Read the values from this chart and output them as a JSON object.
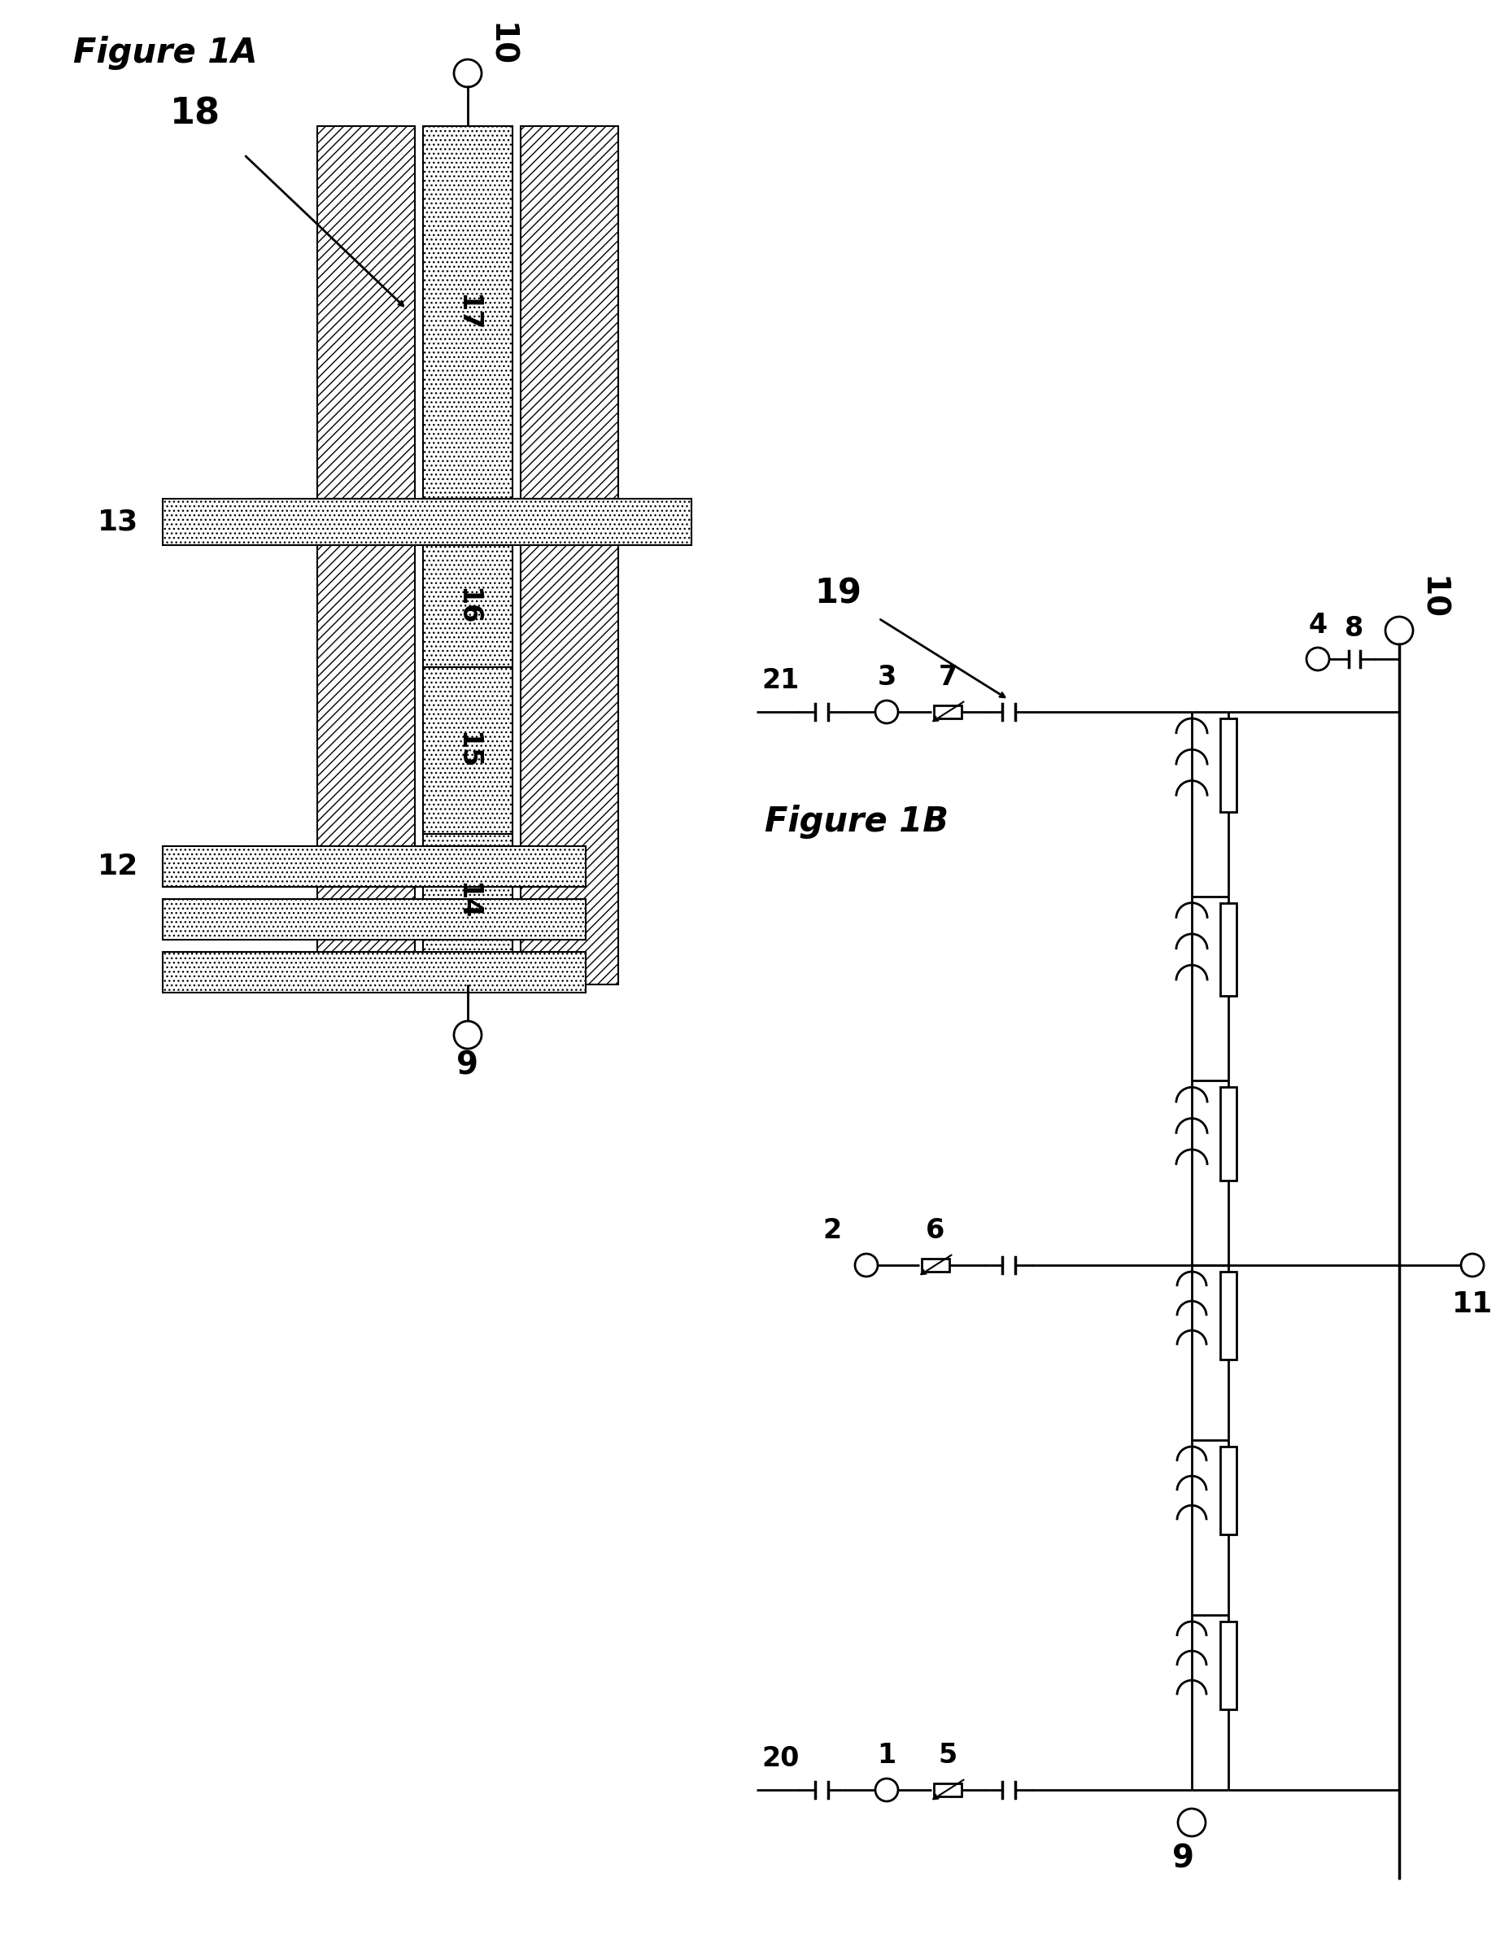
{
  "fig1a_title": "Figure 1A",
  "fig1b_title": "Figure 1B",
  "label_18": "18",
  "label_19": "19",
  "label_9": "9",
  "label_10": "10",
  "label_11": "11",
  "label_12": "12",
  "label_13": "13",
  "label_14": "14",
  "label_15": "15",
  "label_16": "16",
  "label_17": "17",
  "label_20": "20",
  "label_21": "21",
  "label_1": "1",
  "label_2": "2",
  "label_3": "3",
  "label_4": "4",
  "label_5": "5",
  "label_6": "6",
  "label_7": "7",
  "label_8": "8",
  "bg_color": "#ffffff"
}
